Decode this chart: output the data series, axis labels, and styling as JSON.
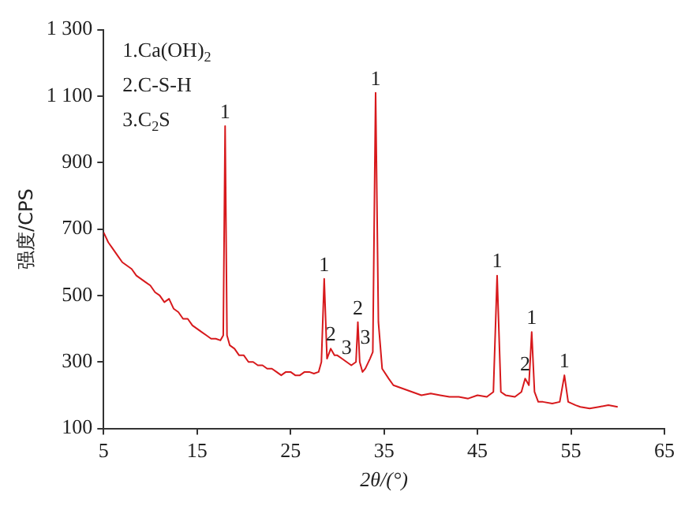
{
  "chart_data": {
    "type": "line",
    "xlabel": "2θ/(°)",
    "ylabel": "强度/CPS",
    "series": [
      {
        "color": "#d7191c",
        "x": [
          5,
          5.5,
          6,
          6.5,
          7,
          7.5,
          8,
          8.5,
          9,
          9.5,
          10,
          10.5,
          11,
          11.5,
          12,
          12.5,
          13,
          13.5,
          14,
          14.5,
          15,
          15.5,
          16,
          16.5,
          17,
          17.5,
          17.8,
          18.0,
          18.2,
          18.5,
          19,
          19.5,
          20,
          20.5,
          21,
          21.5,
          22,
          22.5,
          23,
          23.5,
          24,
          24.5,
          25,
          25.5,
          26,
          26.5,
          27,
          27.5,
          28,
          28.3,
          28.6,
          28.9,
          29.3,
          29.7,
          30,
          30.5,
          31,
          31.5,
          32,
          32.2,
          32.4,
          32.7,
          33,
          33.5,
          33.8,
          34.1,
          34.4,
          34.8,
          35.5,
          36,
          37,
          38,
          39,
          40,
          41,
          42,
          43,
          44,
          45,
          46,
          46.7,
          47.1,
          47.5,
          48,
          49,
          49.7,
          50.1,
          50.5,
          50.8,
          51.1,
          51.5,
          52,
          53,
          53.8,
          54.3,
          54.7,
          55.5,
          56,
          57,
          58,
          59,
          60
        ],
        "values": [
          690,
          660,
          640,
          620,
          600,
          590,
          580,
          560,
          550,
          540,
          530,
          510,
          500,
          480,
          490,
          460,
          450,
          430,
          430,
          410,
          400,
          390,
          380,
          370,
          370,
          365,
          380,
          1010,
          380,
          350,
          340,
          320,
          320,
          300,
          300,
          290,
          290,
          280,
          280,
          270,
          260,
          270,
          270,
          260,
          260,
          270,
          270,
          265,
          270,
          300,
          550,
          310,
          340,
          320,
          320,
          310,
          300,
          290,
          300,
          420,
          300,
          270,
          280,
          310,
          330,
          1110,
          420,
          280,
          250,
          230,
          220,
          210,
          200,
          205,
          200,
          195,
          195,
          190,
          200,
          195,
          210,
          560,
          210,
          200,
          195,
          210,
          250,
          230,
          390,
          210,
          180,
          180,
          175,
          180,
          260,
          180,
          170,
          165,
          160,
          165,
          170,
          165
        ]
      }
    ],
    "xlim": [
      5,
      65
    ],
    "xticks": [
      5,
      15,
      25,
      35,
      45,
      55,
      65
    ],
    "ylim": [
      100,
      1300
    ],
    "yticks": [
      100,
      300,
      500,
      700,
      900,
      {
        "value": 1100,
        "label": "1 100"
      },
      {
        "value": 1300,
        "label": "1 300"
      }
    ],
    "grid": false,
    "legend": false,
    "marker": "none",
    "line_style": "solid",
    "annotations": [
      "1.Ca(OH)$_{2}$",
      "2.C-S-H",
      "3.C$_{2}$S",
      {
        "text": "1",
        "x": 18.0,
        "y": 1010
      },
      {
        "text": "1",
        "x": 28.6,
        "y": 550
      },
      {
        "text": "2",
        "x": 29.3,
        "y": 340
      },
      {
        "text": "3",
        "x": 31,
        "y": 300
      },
      {
        "text": "2",
        "x": 32.2,
        "y": 420
      },
      {
        "text": "3",
        "x": 33.0,
        "y": 330
      },
      {
        "text": "1",
        "x": 34.1,
        "y": 1110
      },
      {
        "text": "1",
        "x": 47.1,
        "y": 560
      },
      {
        "text": "2",
        "x": 50.1,
        "y": 250
      },
      {
        "text": "1",
        "x": 50.8,
        "y": 390
      },
      {
        "text": "1",
        "x": 54.3,
        "y": 260
      }
    ]
  }
}
